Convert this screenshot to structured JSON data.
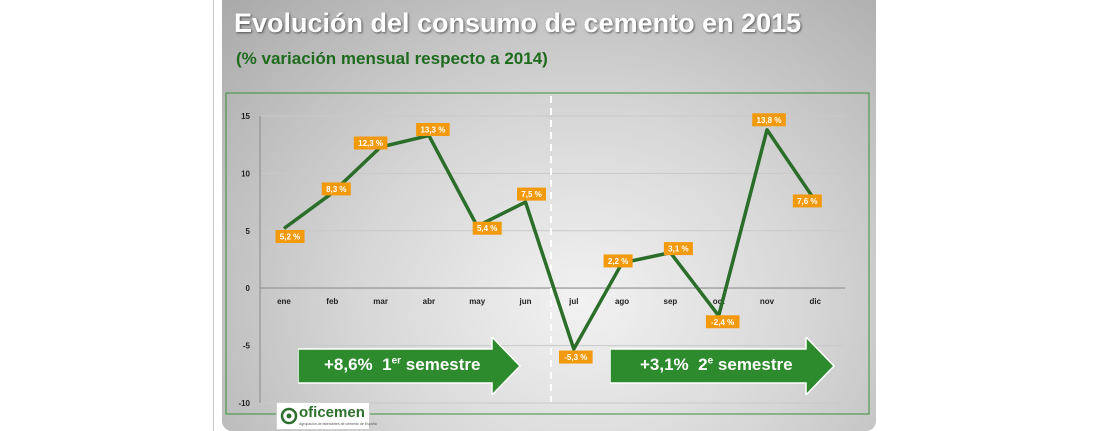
{
  "title": "Evolución del consumo de cemento en 2015",
  "subtitle": "(% variación mensual respecto a 2014)",
  "colors": {
    "line": "#2a6e2a",
    "label_bg": "#f39a0c",
    "arrow": "#2d8a2d",
    "border": "#3a913a"
  },
  "chart_data": {
    "type": "line",
    "title": "Evolución del consumo de cemento en 2015",
    "subtitle": "(% variación mensual respecto a 2014)",
    "xlabel": "",
    "ylabel": "",
    "categories": [
      "ene",
      "feb",
      "mar",
      "abr",
      "may",
      "jun",
      "jul",
      "ago",
      "sep",
      "oct",
      "nov",
      "dic"
    ],
    "series": [
      {
        "name": "% variación mensual",
        "values": [
          5.2,
          8.3,
          12.3,
          13.3,
          5.4,
          7.5,
          -5.3,
          2.2,
          3.1,
          -2.4,
          13.8,
          7.6
        ]
      }
    ],
    "data_labels": [
      "5,2 %",
      "8,3 %",
      "12,3 %",
      "13,3 %",
      "5,4 %",
      "7,5 %",
      "-5,3 %",
      "2,2 %",
      "3,1 %",
      "-2,4 %",
      "13,8 %",
      "7,6 %"
    ],
    "ylim": [
      -10,
      15
    ],
    "yticks": [
      15,
      10,
      5,
      0,
      -5,
      -10
    ],
    "grid": true,
    "annotations": [
      {
        "value": "+8,6%",
        "ordinal": "1",
        "suffix": "er",
        "label": "semestre"
      },
      {
        "value": "+3,1%",
        "ordinal": "2",
        "suffix": "e",
        "label": "semestre"
      }
    ]
  },
  "logo": {
    "name": "oficemen",
    "tagline": "Agrupación de fabricantes de cemento de España"
  }
}
